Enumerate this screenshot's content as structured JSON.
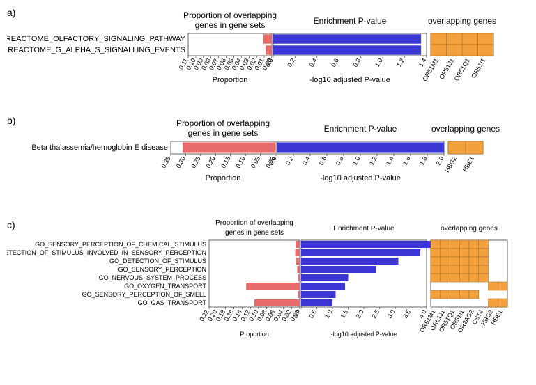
{
  "colors": {
    "proportion_bar": "#e86b6b",
    "pvalue_bar": "#3c36d6",
    "heatmap_fill": "#f2a13c",
    "heatmap_grid": "#a06820",
    "axis": "#000000",
    "text": "#000000",
    "background": "#ffffff"
  },
  "column_titles": {
    "prop_line1": "Proportion of overlapping",
    "prop_line2": "genes in gene sets",
    "pval": "Enrichment P-value",
    "genes": "overlapping genes"
  },
  "axis_titles": {
    "proportion": "Proportion",
    "pvalue": "-log10 adjusted P-value"
  },
  "panel_a": {
    "label": "a)",
    "rows": [
      {
        "label": "REACTOME_OLFACTORY_SIGNALING_PATHWAY",
        "proportion": 0.011,
        "pvalue": 1.35,
        "genes": [
          1,
          1,
          1,
          1
        ]
      },
      {
        "label": "REACTOME_G_ALPHA_S_SIGNALLING_EVENTS",
        "proportion": 0.008,
        "pvalue": 1.35,
        "genes": [
          1,
          1,
          1,
          1
        ]
      }
    ],
    "prop_ticks": [
      0.11,
      0.1,
      0.09,
      0.08,
      0.07,
      0.06,
      0.05,
      0.04,
      0.03,
      0.02,
      0.01,
      0.0
    ],
    "pval_ticks": [
      0.0,
      0.2,
      0.4,
      0.6,
      0.8,
      1.0,
      1.2,
      1.4
    ],
    "gene_labels": [
      "OR51M1",
      "OR51J1",
      "OR51Q1",
      "OR51I1"
    ]
  },
  "panel_b": {
    "label": "b)",
    "rows": [
      {
        "label": "Beta thalassemia/hemoglobin E disease",
        "proportion": 0.31,
        "pvalue": 2.0,
        "genes": [
          1,
          1
        ]
      }
    ],
    "prop_ticks": [
      0.35,
      0.3,
      0.25,
      0.2,
      0.15,
      0.1,
      0.05,
      0.0
    ],
    "pval_ticks": [
      0.0,
      0.2,
      0.4,
      0.6,
      0.8,
      1.0,
      1.2,
      1.4,
      1.6,
      1.8,
      2.0
    ],
    "gene_labels": [
      "HBG2",
      "HBE1"
    ]
  },
  "panel_c": {
    "label": "c)",
    "rows": [
      {
        "label": "GO_SENSORY_PERCEPTION_OF_CHEMICAL_STIMULUS",
        "proportion": 0.01,
        "pvalue": 4.3,
        "genes": [
          1,
          1,
          1,
          1,
          1,
          1,
          0,
          0
        ]
      },
      {
        "label": "GO_DETECTION_OF_STIMULUS_INVOLVED_IN_SENSORY_PERCEPTION",
        "proportion": 0.011,
        "pvalue": 3.8,
        "genes": [
          1,
          1,
          1,
          1,
          1,
          1,
          0,
          0
        ]
      },
      {
        "label": "GO_DETECTION_OF_STIMULUS",
        "proportion": 0.009,
        "pvalue": 3.1,
        "genes": [
          1,
          1,
          1,
          1,
          1,
          1,
          0,
          0
        ]
      },
      {
        "label": "GO_SENSORY_PERCEPTION",
        "proportion": 0.006,
        "pvalue": 2.4,
        "genes": [
          1,
          1,
          1,
          1,
          1,
          1,
          0,
          0
        ]
      },
      {
        "label": "GO_NERVOUS_SYSTEM_PROCESS",
        "proportion": 0.004,
        "pvalue": 1.5,
        "genes": [
          1,
          1,
          1,
          1,
          1,
          1,
          0,
          0
        ]
      },
      {
        "label": "GO_OXYGEN_TRANSPORT",
        "proportion": 0.13,
        "pvalue": 1.4,
        "genes": [
          0,
          0,
          0,
          0,
          0,
          0,
          1,
          1
        ]
      },
      {
        "label": "GO_SENSORY_PERCEPTION_OF_SMELL",
        "proportion": 0.005,
        "pvalue": 1.1,
        "genes": [
          1,
          1,
          1,
          1,
          1,
          0,
          0,
          0
        ]
      },
      {
        "label": "GO_GAS_TRANSPORT",
        "proportion": 0.11,
        "pvalue": 1.0,
        "genes": [
          0,
          0,
          0,
          0,
          0,
          0,
          1,
          1
        ]
      }
    ],
    "prop_ticks": [
      0.22,
      0.2,
      0.18,
      0.16,
      0.14,
      0.12,
      0.1,
      0.08,
      0.06,
      0.04,
      0.02,
      0.0
    ],
    "pval_ticks": [
      0.0,
      0.5,
      1.0,
      1.5,
      2.0,
      2.5,
      3.0,
      3.5,
      4.0
    ],
    "gene_labels": [
      "OR51M1",
      "OR51J1",
      "OR51Q1",
      "OR51I1",
      "OR2AG2",
      "CST4",
      "HBG2",
      "HBE1"
    ]
  }
}
